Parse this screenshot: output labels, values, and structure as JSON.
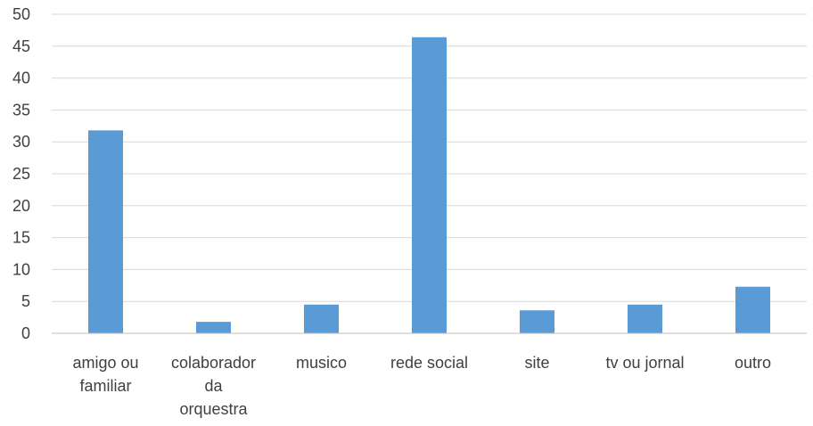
{
  "chart_data": {
    "type": "bar",
    "title": "",
    "xlabel": "",
    "ylabel": "",
    "ylim": [
      0,
      50
    ],
    "yticks": [
      0,
      5,
      10,
      15,
      20,
      25,
      30,
      35,
      40,
      45,
      50
    ],
    "grid": true,
    "legend": "none",
    "bar_color": "#5b9bd5",
    "categories": [
      [
        "amigo ou",
        "familiar"
      ],
      [
        "colaborador",
        "da",
        "orquestra"
      ],
      [
        "musico"
      ],
      [
        "rede social"
      ],
      [
        "site"
      ],
      [
        "tv ou jornal"
      ],
      [
        "outro"
      ]
    ],
    "values": [
      31.8,
      1.8,
      4.5,
      46.4,
      3.6,
      4.5,
      7.3
    ]
  }
}
